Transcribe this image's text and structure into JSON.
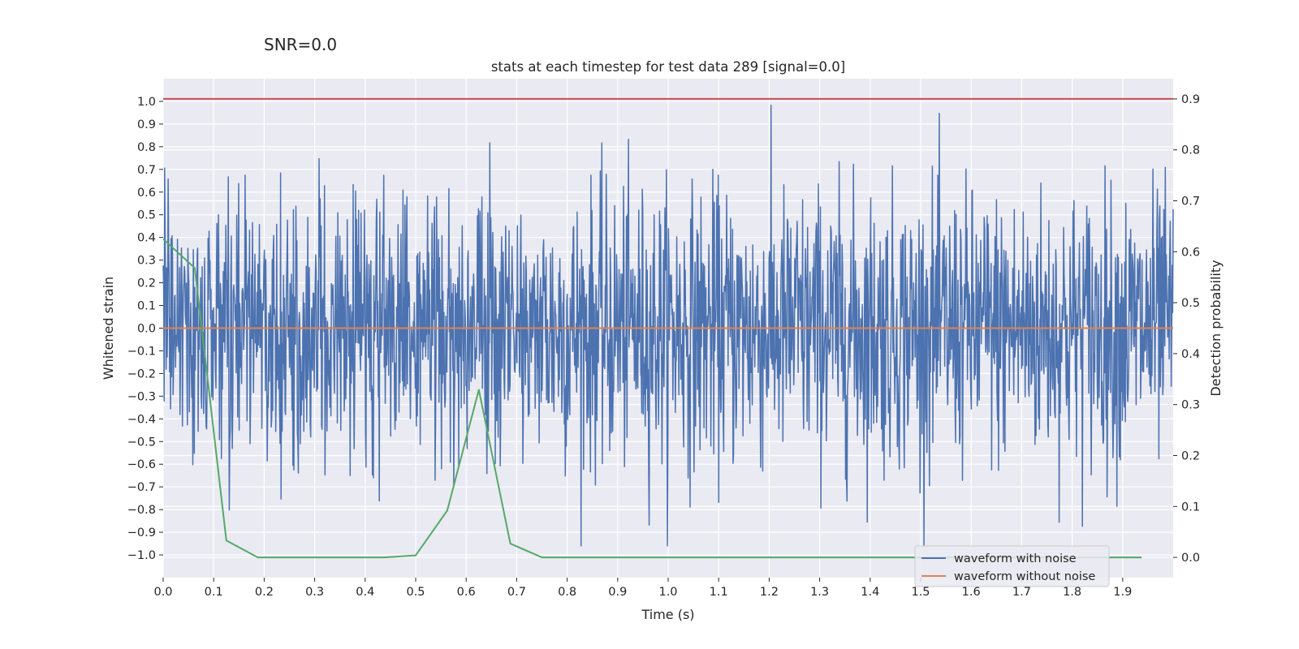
{
  "figure": {
    "suptitle": "SNR=0.0"
  },
  "chart_data": {
    "type": "line",
    "title": "stats at each timestep for test data 289 [signal=0.0]",
    "xlabel": "Time (s)",
    "ylabel": "Whitened strain",
    "y2label": "Detection probability",
    "xlim": [
      0.0,
      2.0
    ],
    "ylim": [
      -1.1,
      1.1
    ],
    "y2lim": [
      -0.0397,
      0.9397
    ],
    "xticks": [
      0.0,
      0.1,
      0.2,
      0.3,
      0.4,
      0.5,
      0.6,
      0.7,
      0.8,
      0.9,
      1.0,
      1.1,
      1.2,
      1.3,
      1.4,
      1.5,
      1.6,
      1.7,
      1.8,
      1.9
    ],
    "xtick_labels": [
      "0.0",
      "0.1",
      "0.2",
      "0.3",
      "0.4",
      "0.5",
      "0.6",
      "0.7",
      "0.8",
      "0.9",
      "1.0",
      "1.1",
      "1.2",
      "1.3",
      "1.4",
      "1.5",
      "1.6",
      "1.7",
      "1.8",
      "1.9"
    ],
    "yticks": [
      -1.0,
      -0.9,
      -0.8,
      -0.7,
      -0.6,
      -0.5,
      -0.4,
      -0.3,
      -0.2,
      -0.1,
      0.0,
      0.1,
      0.2,
      0.3,
      0.4,
      0.5,
      0.6,
      0.7,
      0.8,
      0.9,
      1.0
    ],
    "ytick_labels": [
      "−1.0",
      "−0.9",
      "−0.8",
      "−0.7",
      "−0.6",
      "−0.5",
      "−0.4",
      "−0.3",
      "−0.2",
      "−0.1",
      "0.0",
      "0.1",
      "0.2",
      "0.3",
      "0.4",
      "0.5",
      "0.6",
      "0.7",
      "0.8",
      "0.9",
      "1.0"
    ],
    "y2ticks": [
      0.0,
      0.1,
      0.2,
      0.3,
      0.4,
      0.5,
      0.6,
      0.7,
      0.8,
      0.9
    ],
    "y2tick_labels": [
      "0.0",
      "0.1",
      "0.2",
      "0.3",
      "0.4",
      "0.5",
      "0.6",
      "0.7",
      "0.8",
      "0.9"
    ],
    "grid": true,
    "legend": "bottom-right",
    "series": [
      {
        "name": "waveform with noise",
        "axis": "left",
        "color": "#4c72b0",
        "kind": "noise",
        "n_samples": 2048,
        "range": [
          -0.96,
          1.0
        ],
        "approx_std": 0.3
      },
      {
        "name": "waveform without noise",
        "axis": "left",
        "color": "#dd8452",
        "x": [
          0.0,
          2.0
        ],
        "y": [
          0.0,
          0.0
        ]
      },
      {
        "axis": "right",
        "color": "#55a868",
        "x": [
          0.0,
          0.0625,
          0.125,
          0.1875,
          0.25,
          0.3125,
          0.375,
          0.4375,
          0.5,
          0.5625,
          0.625,
          0.6875,
          0.75,
          0.8125,
          0.875,
          0.9375,
          1.0,
          1.0625,
          1.125,
          1.1875,
          1.25,
          1.3125,
          1.375,
          1.4375,
          1.5,
          1.5625,
          1.625,
          1.6875,
          1.75,
          1.8125,
          1.875,
          1.9375
        ],
        "y": [
          0.625,
          0.568,
          0.033,
          0.0,
          0.0,
          0.0,
          0.0,
          0.0,
          0.004,
          0.092,
          0.329,
          0.027,
          0.0,
          0.0,
          0.0,
          0.0,
          0.0,
          0.0,
          0.0,
          0.0,
          0.0,
          0.0,
          0.0,
          0.0,
          0.0,
          0.0,
          0.0,
          0.0,
          0.0,
          0.0,
          0.0,
          0.0
        ]
      },
      {
        "axis": "right",
        "color": "#c44e52",
        "x": [
          0.0,
          2.0
        ],
        "y": [
          0.9,
          0.9
        ]
      }
    ]
  }
}
